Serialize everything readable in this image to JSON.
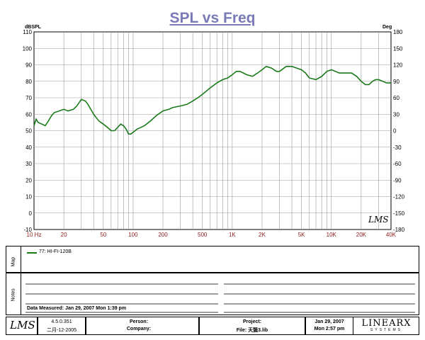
{
  "chart_data": {
    "type": "line",
    "title": "SPL vs Freq",
    "y_left_unit": "dBSPL",
    "y_right_unit": "Deg",
    "x_scale": "log",
    "xlim": [
      10,
      40000
    ],
    "ylim": [
      -10,
      110
    ],
    "y2lim": [
      -180,
      180
    ],
    "y_ticks": [
      110,
      100,
      90,
      80,
      70,
      60,
      50,
      40,
      30,
      20,
      10,
      0,
      -10
    ],
    "y2_ticks": [
      180,
      150,
      120,
      90,
      60,
      30,
      0,
      -30,
      -60,
      -90,
      -120,
      -150,
      -180
    ],
    "x_tick_labels": [
      "10 Hz",
      "20",
      "50",
      "100",
      "200",
      "500",
      "1K",
      "2K",
      "5K",
      "10K",
      "20K",
      "40K"
    ],
    "x_tick_values": [
      10,
      20,
      50,
      100,
      200,
      500,
      1000,
      2000,
      5000,
      10000,
      20000,
      40000
    ],
    "grid": true,
    "series": [
      {
        "name": "77: HI-FI-120B",
        "color": "#1a7a1a",
        "x": [
          10,
          10.5,
          11,
          12,
          13,
          14,
          15,
          16,
          18,
          20,
          22,
          25,
          27,
          30,
          33,
          35,
          40,
          45,
          50,
          55,
          60,
          65,
          70,
          75,
          80,
          85,
          90,
          95,
          100,
          110,
          120,
          130,
          150,
          170,
          200,
          230,
          250,
          300,
          350,
          400,
          450,
          500,
          600,
          700,
          800,
          900,
          1000,
          1100,
          1200,
          1400,
          1600,
          1800,
          2000,
          2200,
          2500,
          2800,
          3000,
          3500,
          4000,
          4500,
          5000,
          5500,
          6000,
          7000,
          8000,
          9000,
          10000,
          11000,
          12000,
          14000,
          16000,
          18000,
          20000,
          22000,
          24000,
          26000,
          28000,
          30000,
          33000,
          36000,
          40000
        ],
        "y": [
          53,
          57,
          55,
          54,
          53,
          56,
          59,
          61,
          62,
          63,
          62,
          63,
          65,
          69,
          68,
          66,
          60,
          56,
          54,
          52,
          50,
          50,
          52,
          54,
          53,
          51,
          48,
          48,
          49,
          51,
          52,
          53,
          56,
          59,
          62,
          63,
          64,
          65,
          66,
          68,
          70,
          72,
          76,
          79,
          81,
          82,
          84,
          86,
          86,
          84,
          83,
          85,
          87,
          89,
          88,
          86,
          86,
          89,
          89,
          88,
          87,
          85,
          82,
          81,
          83,
          86,
          87,
          86,
          85,
          85,
          85,
          83,
          80,
          78,
          78,
          80,
          81,
          81,
          80,
          79,
          79
        ]
      }
    ]
  },
  "legend": {
    "side_label": "Map",
    "entry": "77: HI-FI-120B",
    "entry_color": "#1a7a1a"
  },
  "notes": {
    "side_label": "Notes",
    "date_measured": "Data Measured: Jan 29, 2007   Mon  1:39 pm"
  },
  "footer": {
    "logo": "LMS",
    "version": "4.5.0.351",
    "version_date": "二月-12-2005",
    "person_label": "Person:",
    "company_label": "Company:",
    "project_label": "Project:",
    "file_label": "File: 天簇3.lib",
    "date": "Jan 29, 2007",
    "time": "Mon  2:57 pm",
    "brand": "LINEARX",
    "brand_sub": "SYSTEMS"
  },
  "watermark": "LMS"
}
